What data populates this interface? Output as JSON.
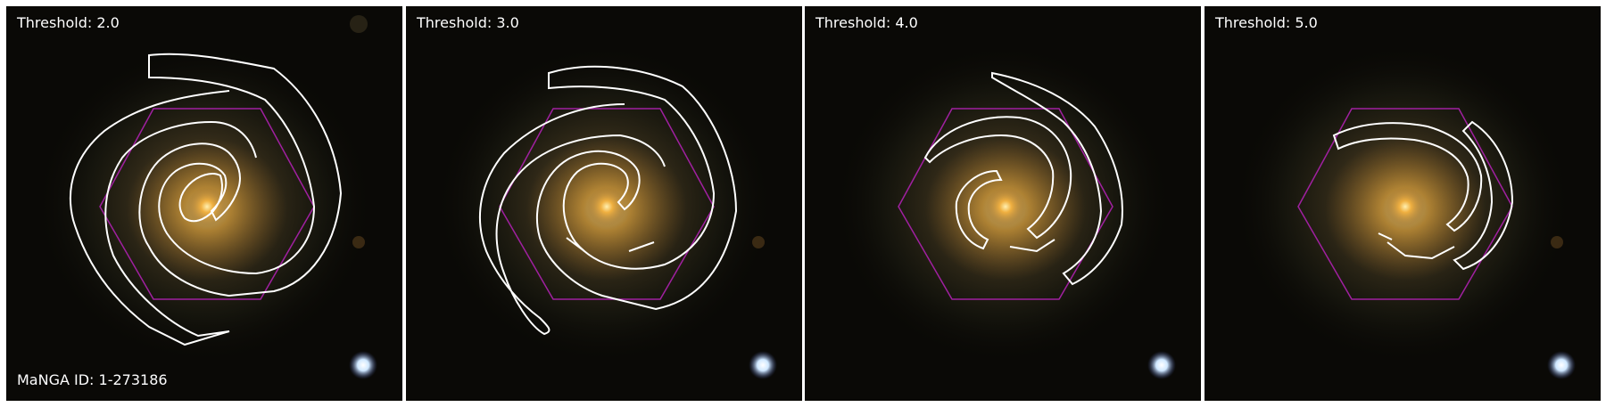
{
  "panels": [
    {
      "threshold_label": "Threshold: 2.0"
    },
    {
      "threshold_label": "Threshold: 3.0"
    },
    {
      "threshold_label": "Threshold: 4.0"
    },
    {
      "threshold_label": "Threshold: 5.0"
    }
  ],
  "manga_id_label": "MaNGA ID: 1-273186",
  "colors": {
    "background": "#0a0906",
    "hexagon": "#a020a0",
    "contour": "#ffffff",
    "core": "#f0b040",
    "star": "#cfe8ff"
  }
}
